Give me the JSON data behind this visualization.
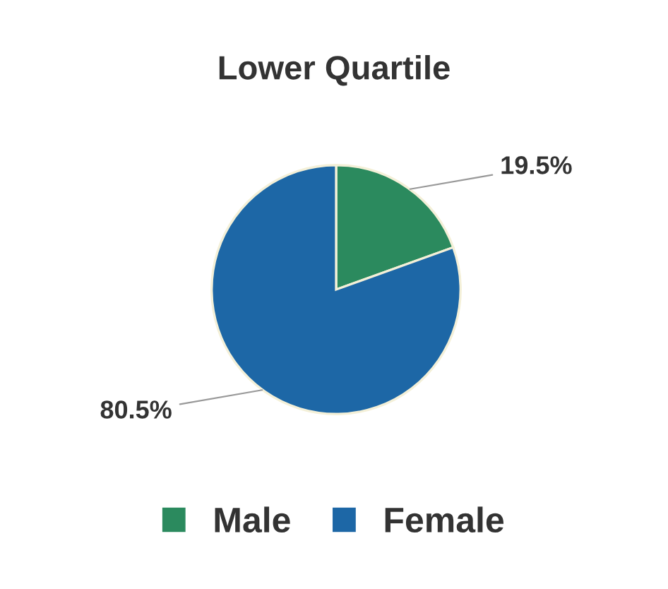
{
  "chart_data": {
    "type": "pie",
    "title": "Lower Quartile",
    "categories": [
      "Male",
      "Female"
    ],
    "values": [
      19.5,
      80.5
    ],
    "colors": [
      "#2b8a5e",
      "#1d67a6"
    ],
    "value_labels": [
      "19.5%",
      "80.5%"
    ],
    "legend": "bottom"
  }
}
